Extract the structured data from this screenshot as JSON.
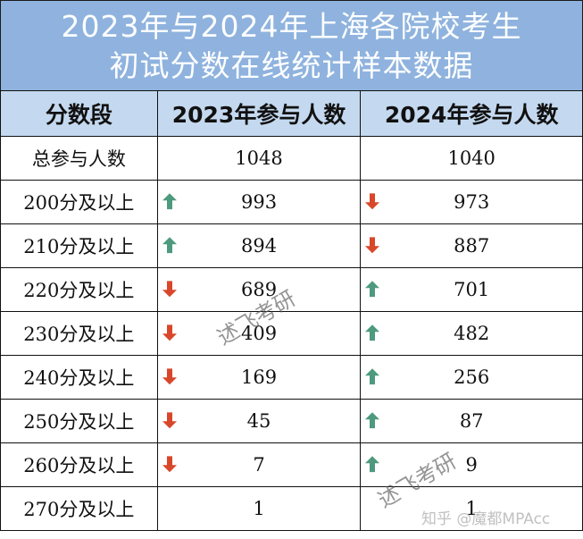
{
  "title": {
    "line1": "2023年与2024年上海各院校考生",
    "line2": "初试分数在线统计样本数据"
  },
  "table": {
    "headers": [
      "分数段",
      "2023年参与人数",
      "2024年参与人数"
    ],
    "rows": [
      {
        "label": "总参与人数",
        "y2023": "1048",
        "trend2023": "",
        "y2024": "1040",
        "trend2024": ""
      },
      {
        "label": "200分及以上",
        "y2023": "993",
        "trend2023": "up",
        "y2024": "973",
        "trend2024": "down"
      },
      {
        "label": "210分及以上",
        "y2023": "894",
        "trend2023": "up",
        "y2024": "887",
        "trend2024": "down"
      },
      {
        "label": "220分及以上",
        "y2023": "689",
        "trend2023": "down",
        "y2024": "701",
        "trend2024": "up"
      },
      {
        "label": "230分及以上",
        "y2023": "409",
        "trend2023": "down",
        "y2024": "482",
        "trend2024": "up"
      },
      {
        "label": "240分及以上",
        "y2023": "169",
        "trend2023": "down",
        "y2024": "256",
        "trend2024": "up"
      },
      {
        "label": "250分及以上",
        "y2023": "45",
        "trend2023": "down",
        "y2024": "87",
        "trend2024": "up"
      },
      {
        "label": "260分及以上",
        "y2023": "7",
        "trend2023": "down",
        "y2024": "9",
        "trend2024": "up"
      },
      {
        "label": "270分及以上",
        "y2023": "1",
        "trend2023": "",
        "y2024": "1",
        "trend2024": ""
      }
    ]
  },
  "colors": {
    "title_band": "#8fb3de",
    "header_row": "#c4d9ef",
    "arrow_up": "#4e9a7e",
    "arrow_down": "#d9472b"
  },
  "icons": {
    "up": "arrow-up-icon",
    "down": "arrow-down-icon"
  },
  "watermarks": {
    "brand": "述飞考研",
    "zhihu": "知乎 @魔都MPAcc"
  }
}
